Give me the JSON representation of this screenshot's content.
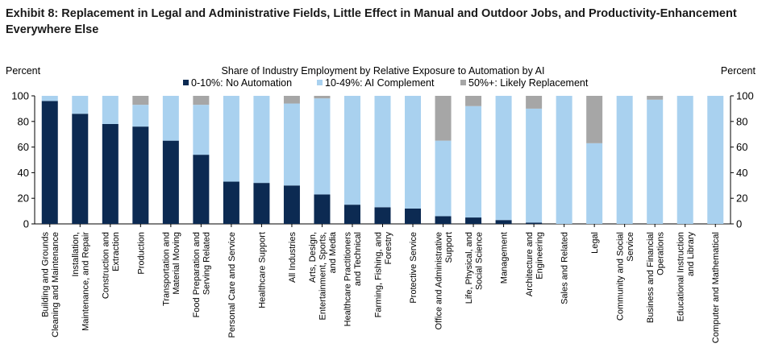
{
  "exhibit_title": "Exhibit 8: Replacement in Legal and Administrative Fields, Little Effect in Manual and Outdoor Jobs, and Productivity-Enhancement Everywhere Else",
  "chart_data": {
    "type": "bar",
    "stacked": true,
    "title": "Share of Industry Employment by Relative Exposure to Automation by AI",
    "ylabel_left": "Percent",
    "ylabel_right": "Percent",
    "ylim": [
      0,
      100
    ],
    "yticks": [
      0,
      20,
      40,
      60,
      80,
      100
    ],
    "grid": false,
    "legend_position": "top",
    "categories": [
      "Building and Grounds Cleaning and Maintenance",
      "Installation, Maintenance, and Repair",
      "Construction and Extraction",
      "Production",
      "Transportation and Material Moving",
      "Food Preparation and Serving Related",
      "Personal Care and Service",
      "Healthcare Support",
      "All Industries",
      "Arts, Design, Entertainment, Sports, and Media",
      "Healthcare Practitioners and Technical",
      "Farming, Fishing, and Forestry",
      "Protective Service",
      "Office and Administrative Support",
      "Life, Physical, and Social Science",
      "Management",
      "Architecture and Engineering",
      "Sales and Related",
      "Legal",
      "Community and Social Service",
      "Business and Financial Operations",
      "Educational Instruction and Library",
      "Computer and Mathematical"
    ],
    "series": [
      {
        "name": "0-10%: No Automation",
        "color": "#0c2a52",
        "values": [
          96,
          86,
          78,
          76,
          65,
          54,
          33,
          32,
          30,
          23,
          15,
          13,
          12,
          6,
          5,
          3,
          1,
          0,
          0,
          0,
          0,
          0,
          0
        ]
      },
      {
        "name": "10-49%: AI Complement",
        "color": "#a9d1ef",
        "values": [
          4,
          14,
          22,
          17,
          35,
          39,
          67,
          68,
          64,
          75,
          85,
          87,
          88,
          59,
          87,
          97,
          89,
          100,
          63,
          100,
          97,
          100,
          100
        ]
      },
      {
        "name": "50%+: Likely Replacement",
        "color": "#a6a6a6",
        "values": [
          0,
          0,
          0,
          7,
          0,
          7,
          0,
          0,
          6,
          2,
          0,
          0,
          0,
          35,
          8,
          0,
          10,
          0,
          37,
          0,
          3,
          0,
          0
        ]
      }
    ]
  }
}
